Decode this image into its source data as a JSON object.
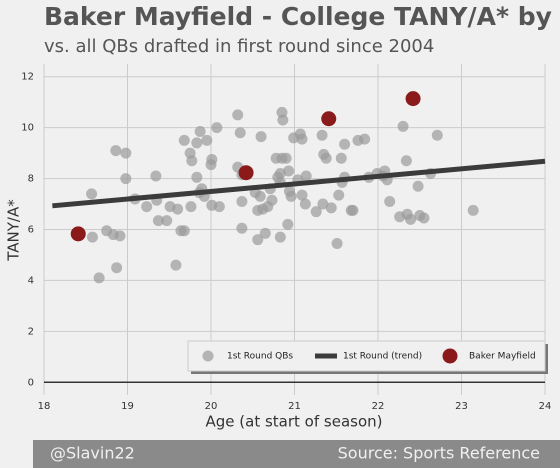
{
  "chart_data": {
    "type": "scatter",
    "title": "Baker Mayfield - College TANY/A* by Age",
    "subtitle": "vs. all QBs drafted in first round since 2004",
    "x_label": "Age (at start of season)",
    "y_label": "TANY/A*",
    "xlim": [
      18,
      24
    ],
    "xticks": [
      18,
      19,
      20,
      21,
      22,
      23,
      24
    ],
    "ylim": [
      -0.5,
      12.5
    ],
    "yticks": [
      0,
      2,
      4,
      6,
      8,
      10,
      12
    ],
    "grid": true,
    "legend": "lower right",
    "series": [
      {
        "name": "1st Round QBs",
        "type": "scatter",
        "color": "#9a9a9a",
        "x": [
          18.57,
          18.58,
          18.66,
          18.75,
          18.83,
          18.86,
          18.87,
          18.91,
          18.98,
          18.98,
          19.09,
          19.23,
          19.34,
          19.35,
          19.37,
          19.47,
          19.51,
          19.58,
          19.6,
          19.64,
          19.68,
          19.68,
          19.75,
          19.76,
          19.77,
          19.83,
          19.83,
          19.86,
          19.87,
          19.89,
          19.92,
          19.95,
          20,
          20.01,
          20.01,
          20.07,
          20.1,
          20.32,
          20.32,
          20.35,
          20.37,
          20.37,
          20.37,
          20.53,
          20.56,
          20.56,
          20.59,
          20.6,
          20.62,
          20.65,
          20.68,
          20.71,
          20.73,
          20.78,
          20.8,
          20.83,
          20.83,
          20.83,
          20.85,
          20.85,
          20.86,
          20.9,
          20.92,
          20.93,
          20.94,
          20.96,
          20.99,
          21.04,
          21.07,
          21.09,
          21.09,
          21.13,
          21.14,
          21.26,
          21.33,
          21.34,
          21.35,
          21.38,
          21.44,
          21.51,
          21.53,
          21.56,
          21.57,
          21.6,
          21.6,
          21.68,
          21.7,
          21.76,
          21.84,
          21.89,
          21.99,
          22.06,
          22.08,
          22.11,
          22.14,
          22.26,
          22.3,
          22.34,
          22.35,
          22.39,
          22.48,
          22.5,
          22.55,
          22.63,
          22.71,
          23.14
        ],
        "values": [
          7.4,
          5.7,
          4.1,
          5.95,
          5.8,
          9.1,
          4.5,
          5.75,
          9.0,
          8.0,
          7.2,
          6.9,
          8.1,
          7.15,
          6.35,
          6.35,
          6.9,
          4.6,
          6.8,
          5.95,
          9.5,
          5.95,
          9.0,
          6.9,
          8.7,
          9.4,
          8.05,
          7.45,
          9.85,
          7.6,
          7.3,
          9.5,
          8.55,
          8.75,
          6.95,
          10.0,
          6.9,
          10.5,
          8.45,
          9.8,
          8.15,
          7.1,
          6.05,
          7.45,
          5.6,
          6.75,
          7.3,
          9.65,
          6.8,
          5.85,
          6.9,
          7.6,
          7.15,
          8.8,
          8.05,
          8.2,
          7.85,
          5.7,
          10.6,
          8.8,
          10.3,
          8.8,
          6.2,
          8.3,
          7.5,
          7.3,
          9.6,
          7.95,
          9.75,
          9.55,
          7.35,
          7.0,
          8.1,
          6.7,
          9.7,
          7.0,
          8.95,
          8.8,
          6.85,
          5.45,
          7.35,
          8.8,
          7.85,
          8.05,
          9.35,
          6.75,
          6.75,
          9.5,
          9.55,
          8.05,
          8.2,
          8.1,
          8.3,
          7.95,
          7.1,
          6.5,
          10.05,
          8.7,
          6.6,
          6.4,
          7.7,
          6.55,
          6.45,
          8.2,
          9.7,
          6.75
        ]
      },
      {
        "name": "1st Round (trend)",
        "type": "line",
        "color": "#3b3b3b",
        "x": [
          18.1,
          24
        ],
        "values": [
          6.93,
          8.68
        ]
      },
      {
        "name": "Baker Mayfield",
        "type": "scatter",
        "color": "#8b1a1a",
        "x": [
          18.41,
          20.42,
          21.41,
          22.42
        ],
        "values": [
          5.83,
          8.23,
          10.35,
          11.14
        ]
      }
    ]
  },
  "footer": {
    "left": "@Slavin22",
    "right": "Source: Sports Reference"
  }
}
